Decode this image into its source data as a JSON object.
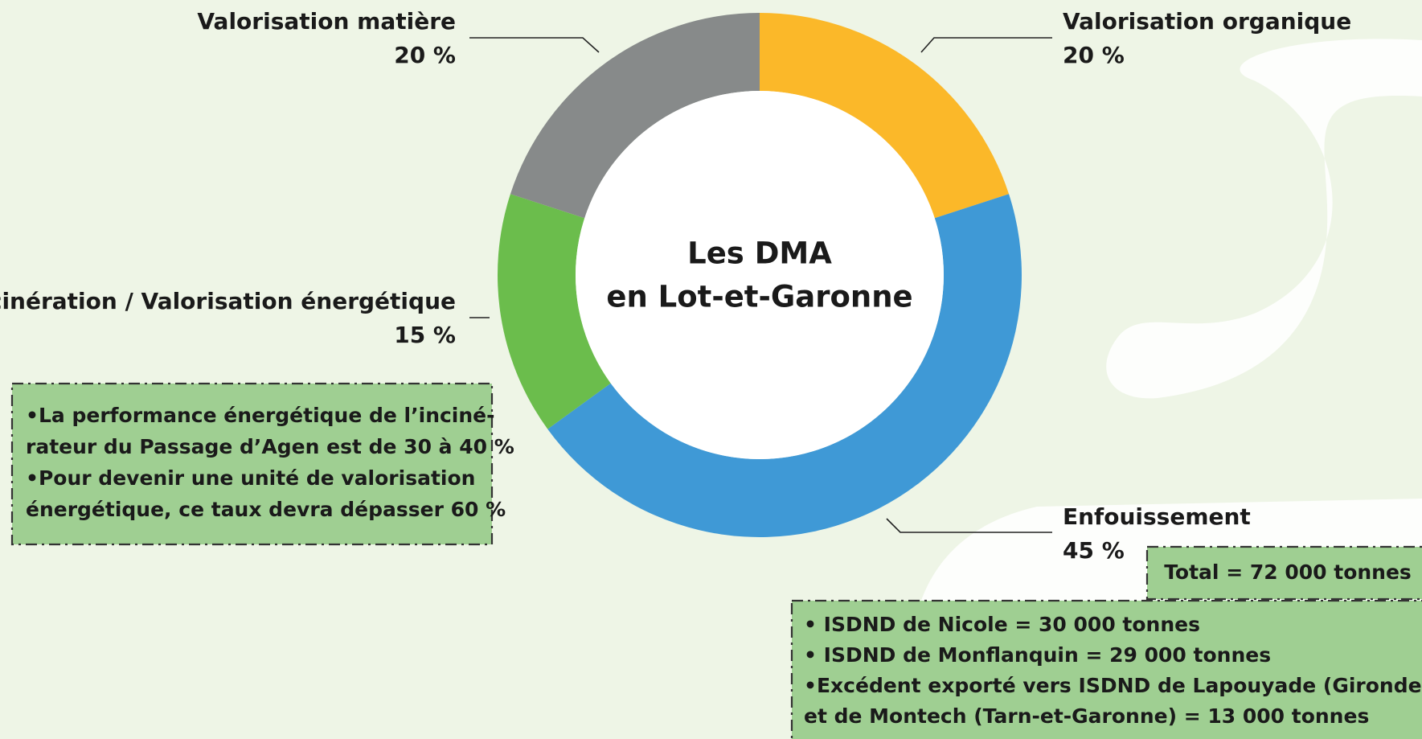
{
  "chart_data": {
    "type": "pie",
    "donut": true,
    "title": [
      "Les DMA",
      "en Lot-et-Garonne"
    ],
    "categories": [
      "Valorisation organique",
      "Enfouissement",
      "Incinération / Valorisation énergétique",
      "Valorisation matière"
    ],
    "values": [
      20,
      45,
      15,
      20
    ],
    "value_labels": [
      "20 %",
      "45 %",
      "15 %",
      "20 %"
    ],
    "colors": [
      "#fbb829",
      "#3f99d6",
      "#6bbd4c",
      "#878a8a"
    ]
  },
  "notes": {
    "incineration": [
      "•La performance énergétique de l’inciné-",
      "rateur du Passage d’Agen est de 30 à 40 %",
      "•Pour devenir une unité de valorisation",
      "énergétique, ce taux devra dépasser 60 %"
    ],
    "total": "Total = 72 000 tonnes",
    "enfouissement": [
      "• ISDND de Nicole = 30 000 tonnes",
      "• ISDND de Monflanquin = 29 000 tonnes",
      "•Excédent exporté vers ISDND de Lapouyade (Gironde)",
      " et de Montech (Tarn-et-Garonne) = 13 000 tonnes"
    ]
  }
}
